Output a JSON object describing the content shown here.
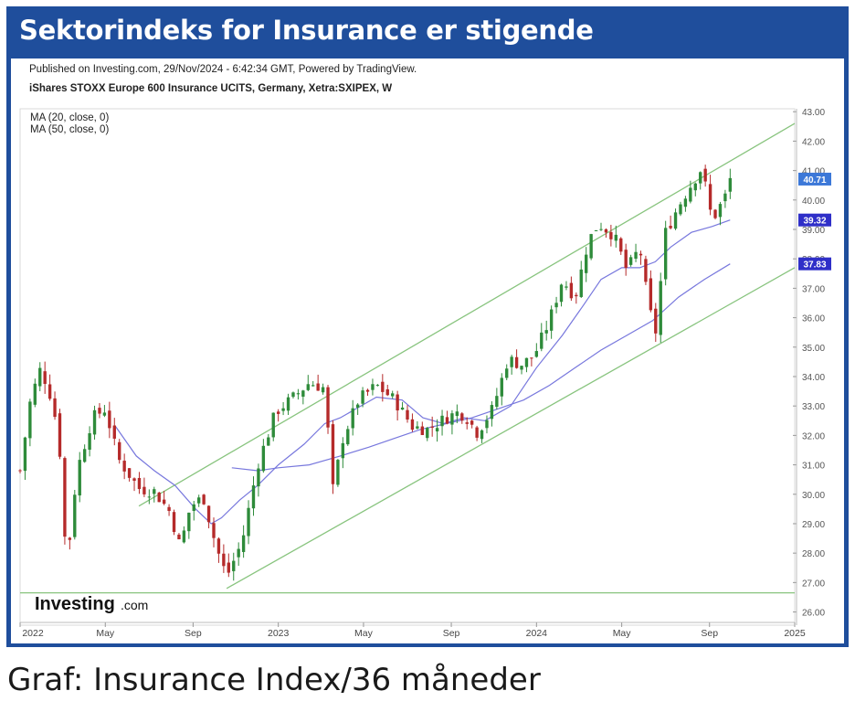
{
  "banner": {
    "title": "Sektorindeks for Insurance er stigende"
  },
  "caption": "Graf: Insurance Index/36 måneder",
  "chart_header": {
    "published": "Published on Investing.com, 29/Nov/2024 - 6:42:34 GMT, Powered by TradingView.",
    "instrument": "iShares STOXX Europe 600 Insurance UCITS, Germany, Xetra:SXIPEX, W",
    "ma1": "MA (20, close, 0)",
    "ma2": "MA (50, close, 0)"
  },
  "logo": {
    "brand": "Investing",
    "suffix": ".com"
  },
  "colors": {
    "banner": "#1f4e9c",
    "up": "#2e8b3a",
    "down": "#b52a2a",
    "ma": "#7777dd",
    "channel": "#88c47e",
    "last_price": "#3c78d8",
    "ma_label": "#2f2fc8"
  },
  "chart_data": {
    "type": "candlestick",
    "period": "weekly",
    "x_ticks": [
      "2022",
      "May",
      "Sep",
      "2023",
      "May",
      "Sep",
      "2024",
      "May",
      "Sep",
      "2025"
    ],
    "y_ticks": [
      "43.00",
      "42.00",
      "41.00",
      "40.00",
      "39.00",
      "38.00",
      "37.00",
      "36.00",
      "35.00",
      "34.00",
      "33.00",
      "32.00",
      "31.00",
      "30.00",
      "29.00",
      "28.00",
      "27.00",
      "26.00"
    ],
    "ylim": [
      25.8,
      43.1
    ],
    "price_labels": [
      {
        "label": "40.71",
        "value": 40.71,
        "role": "last price"
      },
      {
        "label": "39.32",
        "value": 39.32,
        "role": "MA 20"
      },
      {
        "label": "37.83",
        "value": 37.83,
        "role": "MA 50"
      }
    ],
    "close_path": [
      [
        2022.0,
        30.8
      ],
      [
        2022.04,
        33.2
      ],
      [
        2022.08,
        34.3
      ],
      [
        2022.12,
        33.3
      ],
      [
        2022.15,
        32.0
      ],
      [
        2022.18,
        27.5
      ],
      [
        2022.22,
        30.8
      ],
      [
        2022.28,
        32.6
      ],
      [
        2022.33,
        32.9
      ],
      [
        2022.38,
        31.2
      ],
      [
        2022.46,
        30.2
      ],
      [
        2022.52,
        30.1
      ],
      [
        2022.58,
        29.4
      ],
      [
        2022.62,
        28.2
      ],
      [
        2022.66,
        29.6
      ],
      [
        2022.71,
        29.9
      ],
      [
        2022.76,
        28.2
      ],
      [
        2022.8,
        27.2
      ],
      [
        2022.86,
        28.4
      ],
      [
        2022.92,
        31.0
      ],
      [
        2022.99,
        32.8
      ],
      [
        2023.06,
        33.3
      ],
      [
        2023.12,
        33.8
      ],
      [
        2023.18,
        33.6
      ],
      [
        2023.21,
        30.1
      ],
      [
        2023.25,
        31.9
      ],
      [
        2023.31,
        33.2
      ],
      [
        2023.38,
        33.7
      ],
      [
        2023.45,
        33.2
      ],
      [
        2023.52,
        32.3
      ],
      [
        2023.58,
        32.2
      ],
      [
        2023.65,
        32.6
      ],
      [
        2023.7,
        32.8
      ],
      [
        2023.73,
        32.6
      ],
      [
        2023.77,
        32.1
      ],
      [
        2023.83,
        32.9
      ],
      [
        2023.89,
        34.6
      ],
      [
        2023.94,
        34.4
      ],
      [
        2023.99,
        34.7
      ],
      [
        2024.05,
        35.9
      ],
      [
        2024.1,
        37.3
      ],
      [
        2024.15,
        36.7
      ],
      [
        2024.2,
        38.6
      ],
      [
        2024.24,
        39.2
      ],
      [
        2024.3,
        38.8
      ],
      [
        2024.35,
        37.6
      ],
      [
        2024.4,
        38.4
      ],
      [
        2024.43,
        36.6
      ],
      [
        2024.46,
        35.4
      ],
      [
        2024.5,
        38.9
      ],
      [
        2024.55,
        39.8
      ],
      [
        2024.59,
        40.4
      ],
      [
        2024.64,
        41.1
      ],
      [
        2024.68,
        39.3
      ],
      [
        2024.73,
        40.1
      ],
      [
        2024.75,
        40.71
      ]
    ],
    "ma20": [
      [
        2022.37,
        32.3
      ],
      [
        2022.45,
        31.3
      ],
      [
        2022.52,
        30.8
      ],
      [
        2022.6,
        30.3
      ],
      [
        2022.68,
        29.5
      ],
      [
        2022.74,
        29.0
      ],
      [
        2022.78,
        29.2
      ],
      [
        2022.85,
        29.8
      ],
      [
        2022.92,
        30.3
      ],
      [
        2023.0,
        31.0
      ],
      [
        2023.1,
        31.7
      ],
      [
        2023.18,
        32.4
      ],
      [
        2023.24,
        32.6
      ],
      [
        2023.3,
        32.9
      ],
      [
        2023.38,
        33.3
      ],
      [
        2023.48,
        33.2
      ],
      [
        2023.56,
        32.6
      ],
      [
        2023.64,
        32.4
      ],
      [
        2023.72,
        32.6
      ],
      [
        2023.8,
        32.5
      ],
      [
        2023.9,
        33.0
      ],
      [
        2024.0,
        34.3
      ],
      [
        2024.1,
        35.4
      ],
      [
        2024.18,
        36.4
      ],
      [
        2024.25,
        37.3
      ],
      [
        2024.33,
        37.7
      ],
      [
        2024.4,
        37.7
      ],
      [
        2024.46,
        37.9
      ],
      [
        2024.52,
        38.4
      ],
      [
        2024.6,
        38.9
      ],
      [
        2024.68,
        39.1
      ],
      [
        2024.75,
        39.32
      ]
    ],
    "ma50": [
      [
        2022.82,
        30.9
      ],
      [
        2022.92,
        30.8
      ],
      [
        2023.0,
        30.9
      ],
      [
        2023.12,
        31.0
      ],
      [
        2023.24,
        31.3
      ],
      [
        2023.35,
        31.6
      ],
      [
        2023.45,
        31.9
      ],
      [
        2023.55,
        32.2
      ],
      [
        2023.65,
        32.4
      ],
      [
        2023.75,
        32.6
      ],
      [
        2023.85,
        32.9
      ],
      [
        2023.95,
        33.2
      ],
      [
        2024.05,
        33.7
      ],
      [
        2024.15,
        34.3
      ],
      [
        2024.25,
        34.9
      ],
      [
        2024.35,
        35.4
      ],
      [
        2024.45,
        35.9
      ],
      [
        2024.55,
        36.7
      ],
      [
        2024.65,
        37.3
      ],
      [
        2024.75,
        37.83
      ]
    ],
    "trend_lines": [
      {
        "name": "upper channel",
        "from": [
          2022.46,
          29.6
        ],
        "to": [
          2025.0,
          42.6
        ]
      },
      {
        "name": "lower channel",
        "from": [
          2022.8,
          26.8
        ],
        "to": [
          2025.0,
          37.7
        ]
      },
      {
        "name": "horizontal support",
        "from": [
          2022.0,
          26.65
        ],
        "to": [
          2025.0,
          26.65
        ]
      }
    ]
  }
}
